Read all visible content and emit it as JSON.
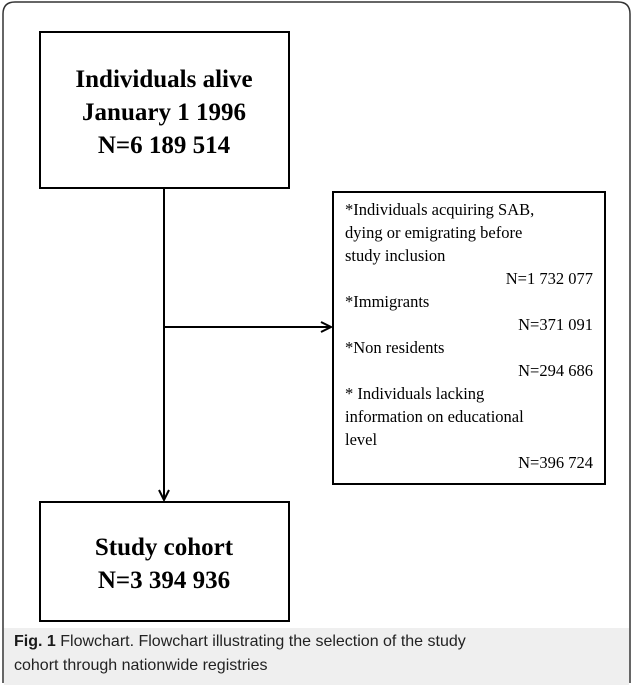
{
  "nodes": [
    {
      "lines": [
        "Individuals alive",
        "January 1 1996",
        "N=6 189 514"
      ]
    },
    {
      "lines": [
        "*Individuals acquiring SAB,",
        "dying or emigrating before",
        "study inclusion",
        "N=1 732 077",
        "*Immigrants",
        "N=371 091",
        "*Non residents",
        "N=294 686",
        "* Individuals lacking",
        "information on educational",
        "level",
        "N=396 724"
      ]
    },
    {
      "lines": [
        "Study cohort",
        "N=3 394 936"
      ]
    }
  ],
  "caption": {
    "label": "Fig. 1",
    "lines": [
      "Flowchart. Flowchart illustrating the selection of the study",
      "cohort through nationwide registries"
    ]
  }
}
